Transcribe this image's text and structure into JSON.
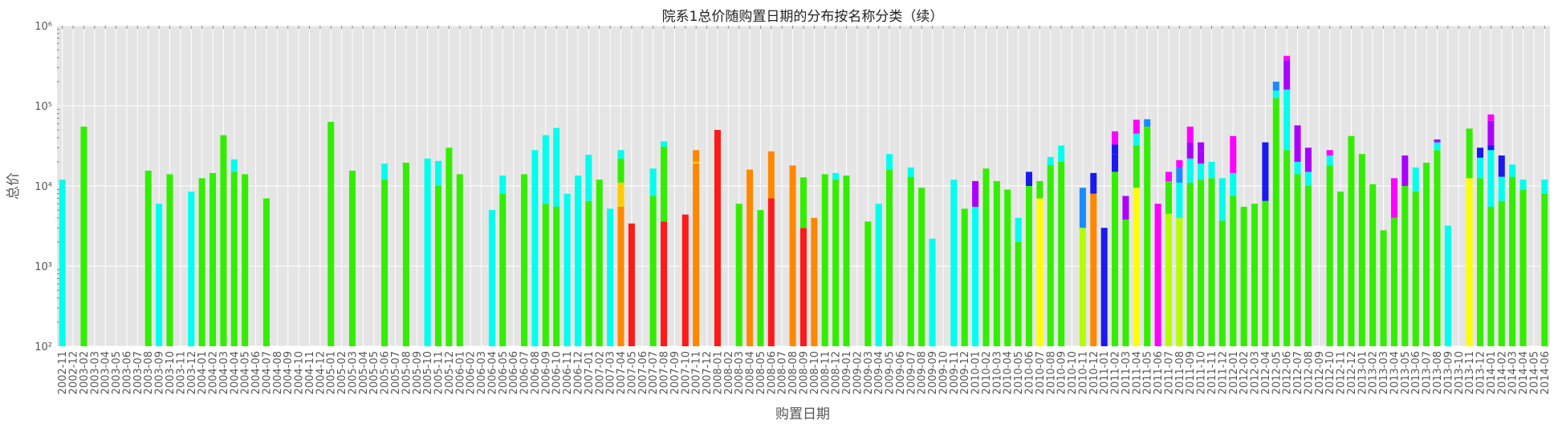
{
  "chart_data": {
    "type": "bar",
    "stacked": true,
    "title": "院系1总价随购置日期的分布按名称分类（续）",
    "xlabel": "购置日期",
    "ylabel": "总价",
    "yscale": "log",
    "ylim": [
      100,
      1000000
    ],
    "grid": true,
    "ytick_values": [
      100,
      1000,
      10000,
      100000,
      1000000
    ],
    "ytick_labels": [
      "10²",
      "10³",
      "10⁴",
      "10⁵",
      "10⁶"
    ],
    "colors": {
      "red": "#ff1a1a",
      "orange": "#ff8800",
      "gold": "#ffcc00",
      "yellow": "#ffff00",
      "chartreuse": "#b3ff00",
      "green": "#33ee00",
      "cyan": "#00ffee",
      "azure": "#1a8cff",
      "blue": "#1a1aee",
      "violet": "#aa00ff",
      "magenta": "#ff00ff"
    },
    "categories": [
      "2002-11",
      "2002-12",
      "2003-02",
      "2003-03",
      "2003-04",
      "2003-05",
      "2003-06",
      "2003-07",
      "2003-08",
      "2003-09",
      "2003-10",
      "2003-11",
      "2003-12",
      "2004-01",
      "2004-02",
      "2004-03",
      "2004-04",
      "2004-05",
      "2004-06",
      "2004-07",
      "2004-08",
      "2004-09",
      "2004-10",
      "2004-11",
      "2004-12",
      "2005-01",
      "2005-02",
      "2005-03",
      "2005-04",
      "2005-05",
      "2005-06",
      "2005-07",
      "2005-08",
      "2005-09",
      "2005-10",
      "2005-11",
      "2005-12",
      "2006-01",
      "2006-02",
      "2006-03",
      "2006-04",
      "2006-05",
      "2006-06",
      "2006-07",
      "2006-08",
      "2006-09",
      "2006-10",
      "2006-11",
      "2006-12",
      "2007-01",
      "2007-02",
      "2007-03",
      "2007-04",
      "2007-05",
      "2007-06",
      "2007-07",
      "2007-08",
      "2007-09",
      "2007-10",
      "2007-11",
      "2007-12",
      "2008-01",
      "2008-02",
      "2008-03",
      "2008-04",
      "2008-05",
      "2008-06",
      "2008-07",
      "2008-08",
      "2008-09",
      "2008-10",
      "2008-11",
      "2008-12",
      "2009-01",
      "2009-02",
      "2009-03",
      "2009-04",
      "2009-05",
      "2009-06",
      "2009-07",
      "2009-08",
      "2009-09",
      "2009-10",
      "2009-11",
      "2009-12",
      "2010-01",
      "2010-02",
      "2010-03",
      "2010-04",
      "2010-05",
      "2010-06",
      "2010-07",
      "2010-08",
      "2010-09",
      "2010-10",
      "2010-11",
      "2010-12",
      "2011-01",
      "2011-02",
      "2011-03",
      "2011-04",
      "2011-05",
      "2011-06",
      "2011-07",
      "2011-08",
      "2011-09",
      "2011-10",
      "2011-11",
      "2011-12",
      "2012-01",
      "2012-02",
      "2012-03",
      "2012-04",
      "2012-05",
      "2012-06",
      "2012-07",
      "2012-08",
      "2012-09",
      "2012-10",
      "2012-11",
      "2012-12",
      "2013-01",
      "2013-02",
      "2013-03",
      "2013-04",
      "2013-05",
      "2013-06",
      "2013-07",
      "2013-08",
      "2013-09",
      "2013-10",
      "2013-11",
      "2013-12",
      "2014-01",
      "2014-02",
      "2014-03",
      "2014-04",
      "2014-05",
      "2014-06"
    ],
    "bars": [
      [
        [
          "cyan",
          12000
        ]
      ],
      [],
      [
        [
          "green",
          55000
        ]
      ],
      [],
      [],
      [],
      [],
      [],
      [
        [
          "green",
          15500
        ]
      ],
      [
        [
          "cyan",
          6000
        ]
      ],
      [
        [
          "green",
          14000
        ]
      ],
      [],
      [
        [
          "cyan",
          8500
        ]
      ],
      [
        [
          "green",
          12500
        ]
      ],
      [
        [
          "green",
          14500
        ]
      ],
      [
        [
          "green",
          43000
        ]
      ],
      [
        [
          "green",
          15000
        ],
        [
          "cyan",
          21500
        ]
      ],
      [
        [
          "green",
          14000
        ]
      ],
      [],
      [
        [
          "green",
          7000
        ]
      ],
      [],
      [],
      [],
      [],
      [],
      [
        [
          "green",
          63000
        ]
      ],
      [],
      [
        [
          "green",
          15500
        ]
      ],
      [],
      [],
      [
        [
          "green",
          12000
        ],
        [
          "cyan",
          19000
        ]
      ],
      [],
      [
        [
          "green",
          19500
        ]
      ],
      [],
      [
        [
          "cyan",
          22000
        ]
      ],
      [
        [
          "green",
          10000
        ],
        [
          "cyan",
          20500
        ]
      ],
      [
        [
          "green",
          30000
        ]
      ],
      [
        [
          "green",
          14000
        ]
      ],
      [],
      [],
      [
        [
          "cyan",
          5000
        ]
      ],
      [
        [
          "green",
          8000
        ],
        [
          "cyan",
          13500
        ]
      ],
      [],
      [
        [
          "green",
          14000
        ]
      ],
      [
        [
          "cyan",
          28000
        ]
      ],
      [
        [
          "green",
          6000
        ],
        [
          "cyan",
          43000
        ]
      ],
      [
        [
          "green",
          5500
        ],
        [
          "cyan",
          53000
        ]
      ],
      [
        [
          "cyan",
          8000
        ]
      ],
      [
        [
          "cyan",
          13500
        ]
      ],
      [
        [
          "green",
          6500
        ],
        [
          "cyan",
          24500
        ]
      ],
      [
        [
          "green",
          12000
        ]
      ],
      [
        [
          "cyan",
          5200
        ]
      ],
      [
        [
          "orange",
          5500
        ],
        [
          "gold",
          11000
        ],
        [
          "green",
          22000
        ],
        [
          "cyan",
          28000
        ]
      ],
      [
        [
          "red",
          3400
        ]
      ],
      [],
      [
        [
          "green",
          7500
        ],
        [
          "cyan",
          16500
        ]
      ],
      [
        [
          "red",
          3600
        ],
        [
          "green",
          31000
        ],
        [
          "cyan",
          36000
        ]
      ],
      [],
      [
        [
          "red",
          4400
        ]
      ],
      [
        [
          "orange",
          19000
        ],
        [
          "gold",
          20000
        ],
        [
          "orange",
          28000
        ]
      ],
      [],
      [
        [
          "red",
          50000
        ]
      ],
      [],
      [
        [
          "green",
          6000
        ]
      ],
      [
        [
          "orange",
          16000
        ]
      ],
      [
        [
          "green",
          5000
        ]
      ],
      [
        [
          "red",
          7000
        ],
        [
          "orange",
          10000
        ],
        [
          "orange",
          27000
        ]
      ],
      [],
      [
        [
          "orange",
          18000
        ]
      ],
      [
        [
          "red",
          3000
        ],
        [
          "green",
          12800
        ]
      ],
      [
        [
          "orange",
          4000
        ]
      ],
      [
        [
          "green",
          14000
        ]
      ],
      [
        [
          "green",
          12000
        ],
        [
          "cyan",
          14500
        ]
      ],
      [
        [
          "green",
          13500
        ]
      ],
      [],
      [
        [
          "green",
          3600
        ]
      ],
      [
        [
          "cyan",
          6000
        ]
      ],
      [
        [
          "green",
          16000
        ],
        [
          "cyan",
          25000
        ]
      ],
      [],
      [
        [
          "green",
          13000
        ],
        [
          "cyan",
          17000
        ]
      ],
      [
        [
          "green",
          9500
        ]
      ],
      [
        [
          "cyan",
          2200
        ]
      ],
      [],
      [
        [
          "cyan",
          12000
        ]
      ],
      [
        [
          "green",
          5200
        ]
      ],
      [
        [
          "cyan",
          5500
        ],
        [
          "violet",
          11500
        ]
      ],
      [
        [
          "green",
          16500
        ]
      ],
      [
        [
          "green",
          11500
        ]
      ],
      [
        [
          "green",
          9000
        ]
      ],
      [
        [
          "green",
          2000
        ],
        [
          "cyan",
          4000
        ]
      ],
      [
        [
          "green",
          10000
        ],
        [
          "blue",
          15000
        ]
      ],
      [
        [
          "yellow",
          7000
        ],
        [
          "green",
          11500
        ]
      ],
      [
        [
          "green",
          18000
        ],
        [
          "cyan",
          23000
        ]
      ],
      [
        [
          "green",
          20000
        ],
        [
          "cyan",
          32000
        ]
      ],
      [],
      [
        [
          "chartreuse",
          3000
        ],
        [
          "azure",
          9500
        ]
      ],
      [
        [
          "orange",
          8000
        ],
        [
          "blue",
          14500
        ]
      ],
      [
        [
          "blue",
          3000
        ]
      ],
      [
        [
          "green",
          15000
        ],
        [
          "blue",
          25000
        ],
        [
          "blue",
          33000
        ],
        [
          "magenta",
          38000
        ],
        [
          "magenta",
          48000
        ]
      ],
      [
        [
          "green",
          3800
        ],
        [
          "violet",
          7500
        ]
      ],
      [
        [
          "yellow",
          9500
        ],
        [
          "green",
          32000
        ],
        [
          "cyan",
          45000
        ],
        [
          "magenta",
          55000
        ],
        [
          "magenta",
          67000
        ]
      ],
      [
        [
          "green",
          55000
        ],
        [
          "azure",
          68000
        ]
      ],
      [
        [
          "magenta",
          6000
        ]
      ],
      [
        [
          "chartreuse",
          4500
        ],
        [
          "green",
          11500
        ],
        [
          "magenta",
          15000
        ]
      ],
      [
        [
          "chartreuse",
          4000
        ],
        [
          "cyan",
          11000
        ],
        [
          "azure",
          17000
        ],
        [
          "magenta",
          21000
        ]
      ],
      [
        [
          "green",
          11000
        ],
        [
          "cyan",
          22000
        ],
        [
          "violet",
          35000
        ],
        [
          "magenta",
          55000
        ]
      ],
      [
        [
          "green",
          12000
        ],
        [
          "cyan",
          19000
        ],
        [
          "violet",
          27000
        ],
        [
          "violet",
          35000
        ]
      ],
      [
        [
          "green",
          12500
        ],
        [
          "cyan",
          20000
        ]
      ],
      [
        [
          "green",
          3700
        ],
        [
          "cyan",
          12500
        ]
      ],
      [
        [
          "green",
          7500
        ],
        [
          "cyan",
          14500
        ],
        [
          "magenta",
          42000
        ]
      ],
      [
        [
          "green",
          5500
        ]
      ],
      [
        [
          "green",
          6000
        ]
      ],
      [
        [
          "green",
          6500
        ],
        [
          "blue",
          35000
        ]
      ],
      [
        [
          "green",
          125000
        ],
        [
          "cyan",
          155000
        ],
        [
          "azure",
          200000
        ]
      ],
      [
        [
          "green",
          28000
        ],
        [
          "cyan",
          160000
        ],
        [
          "violet",
          260000
        ],
        [
          "violet",
          370000
        ],
        [
          "magenta",
          420000
        ]
      ],
      [
        [
          "green",
          14000
        ],
        [
          "cyan",
          20000
        ],
        [
          "violet",
          57000
        ]
      ],
      [
        [
          "green",
          10000
        ],
        [
          "cyan",
          15000
        ],
        [
          "violet",
          30000
        ]
      ],
      [],
      [
        [
          "green",
          18000
        ],
        [
          "cyan",
          24000
        ],
        [
          "magenta",
          28000
        ]
      ],
      [
        [
          "green",
          8500
        ]
      ],
      [
        [
          "green",
          42000
        ]
      ],
      [
        [
          "green",
          25000
        ]
      ],
      [
        [
          "green",
          10500
        ]
      ],
      [
        [
          "green",
          2800
        ]
      ],
      [
        [
          "green",
          4000
        ],
        [
          "magenta",
          12500
        ]
      ],
      [
        [
          "green",
          10000
        ],
        [
          "violet",
          24000
        ]
      ],
      [
        [
          "green",
          8500
        ],
        [
          "cyan",
          17000
        ]
      ],
      [
        [
          "green",
          19500
        ]
      ],
      [
        [
          "green",
          28000
        ],
        [
          "cyan",
          35000
        ],
        [
          "violet",
          38000
        ]
      ],
      [
        [
          "cyan",
          3200
        ]
      ],
      [],
      [
        [
          "yellow",
          12500
        ],
        [
          "green",
          52000
        ]
      ],
      [
        [
          "green",
          12500
        ],
        [
          "cyan",
          22500
        ],
        [
          "blue",
          30000
        ]
      ],
      [
        [
          "green",
          5500
        ],
        [
          "cyan",
          28000
        ],
        [
          "blue",
          32000
        ],
        [
          "violet",
          65000
        ],
        [
          "magenta",
          78000
        ]
      ],
      [
        [
          "green",
          6500
        ],
        [
          "cyan",
          13000
        ],
        [
          "blue",
          24000
        ]
      ],
      [
        [
          "green",
          13000
        ],
        [
          "cyan",
          18500
        ]
      ],
      [
        [
          "green",
          9000
        ],
        [
          "cyan",
          12000
        ]
      ],
      [],
      [
        [
          "green",
          8000
        ],
        [
          "cyan",
          12000
        ]
      ]
    ]
  }
}
